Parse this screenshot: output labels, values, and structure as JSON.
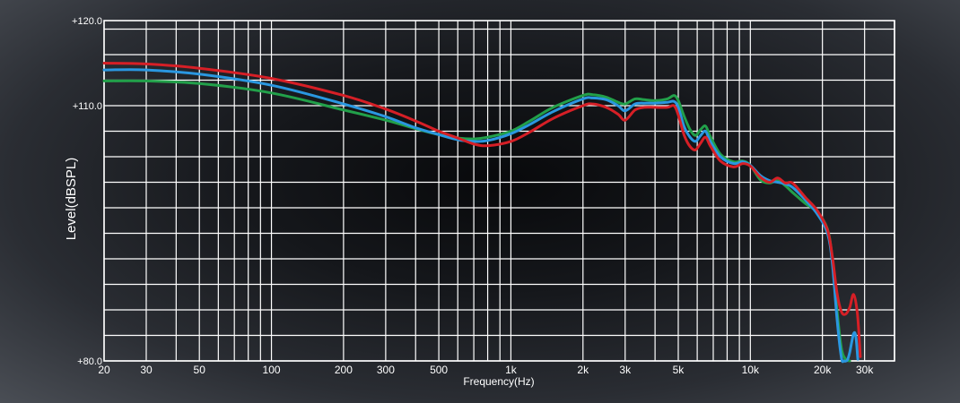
{
  "chart_data": {
    "type": "line",
    "xlabel": "Frequency(Hz)",
    "ylabel": "Level(dBSPL)",
    "x_scale": "log",
    "xlim": [
      20,
      40000
    ],
    "ylim": [
      80,
      120
    ],
    "grid": true,
    "x_tick_labels": [
      {
        "v": 20,
        "label": "20"
      },
      {
        "v": 30,
        "label": "30"
      },
      {
        "v": 50,
        "label": "50"
      },
      {
        "v": 100,
        "label": "100"
      },
      {
        "v": 200,
        "label": "200"
      },
      {
        "v": 300,
        "label": "300"
      },
      {
        "v": 500,
        "label": "500"
      },
      {
        "v": 1000,
        "label": "1k"
      },
      {
        "v": 2000,
        "label": "2k"
      },
      {
        "v": 3000,
        "label": "3k"
      },
      {
        "v": 5000,
        "label": "5k"
      },
      {
        "v": 10000,
        "label": "10k"
      },
      {
        "v": 20000,
        "label": "20k"
      },
      {
        "v": 30000,
        "label": "30k"
      }
    ],
    "y_tick_labels": [
      {
        "v": 120,
        "label": "+120.0"
      },
      {
        "v": 110,
        "label": "+110.0"
      },
      {
        "v": 80,
        "label": "+80.0"
      }
    ],
    "series": [
      {
        "color": "#22a04a",
        "points": [
          [
            20,
            112.9
          ],
          [
            30,
            112.9
          ],
          [
            50,
            112.6
          ],
          [
            100,
            111.5
          ],
          [
            200,
            109.5
          ],
          [
            300,
            108.3
          ],
          [
            400,
            107.3
          ],
          [
            500,
            106.6
          ],
          [
            600,
            106.2
          ],
          [
            700,
            106.1
          ],
          [
            800,
            106.3
          ],
          [
            1000,
            107.0
          ],
          [
            1200,
            108.2
          ],
          [
            1500,
            109.8
          ],
          [
            2000,
            111.2
          ],
          [
            2200,
            111.3
          ],
          [
            2500,
            111.0
          ],
          [
            2800,
            110.4
          ],
          [
            3000,
            110.2
          ],
          [
            3300,
            110.8
          ],
          [
            3600,
            110.7
          ],
          [
            4000,
            110.6
          ],
          [
            4500,
            110.8
          ],
          [
            4800,
            111.2
          ],
          [
            5000,
            110.6
          ],
          [
            5300,
            108.7
          ],
          [
            5600,
            107.2
          ],
          [
            5900,
            106.5
          ],
          [
            6200,
            107.2
          ],
          [
            6500,
            107.6
          ],
          [
            6800,
            106.4
          ],
          [
            7500,
            104.3
          ],
          [
            8500,
            103.4
          ],
          [
            9300,
            103.5
          ],
          [
            10000,
            103.0
          ],
          [
            11000,
            101.3
          ],
          [
            12000,
            100.9
          ],
          [
            13000,
            101.2
          ],
          [
            14000,
            100.6
          ],
          [
            15000,
            99.8
          ],
          [
            17000,
            98.5
          ],
          [
            19000,
            97.5
          ],
          [
            21000,
            95.5
          ],
          [
            22000,
            92.0
          ],
          [
            23000,
            86.0
          ],
          [
            24000,
            81.5
          ],
          [
            25000,
            80.2
          ],
          [
            26000,
            80.0
          ]
        ]
      },
      {
        "color": "#2a97e0",
        "points": [
          [
            20,
            114.2
          ],
          [
            30,
            114.2
          ],
          [
            50,
            113.7
          ],
          [
            100,
            112.4
          ],
          [
            200,
            110.2
          ],
          [
            300,
            108.7
          ],
          [
            400,
            107.4
          ],
          [
            500,
            106.6
          ],
          [
            600,
            106.0
          ],
          [
            700,
            105.8
          ],
          [
            800,
            105.9
          ],
          [
            1000,
            106.7
          ],
          [
            1200,
            107.8
          ],
          [
            1500,
            109.3
          ],
          [
            2000,
            110.8
          ],
          [
            2200,
            110.9
          ],
          [
            2500,
            110.7
          ],
          [
            2800,
            110.0
          ],
          [
            3000,
            109.4
          ],
          [
            3300,
            110.2
          ],
          [
            3600,
            110.3
          ],
          [
            4000,
            110.3
          ],
          [
            4500,
            110.4
          ],
          [
            4800,
            110.5
          ],
          [
            5000,
            109.8
          ],
          [
            5300,
            107.5
          ],
          [
            5600,
            106.3
          ],
          [
            5900,
            105.8
          ],
          [
            6200,
            106.5
          ],
          [
            6500,
            107.0
          ],
          [
            6800,
            105.8
          ],
          [
            7500,
            104.0
          ],
          [
            8500,
            103.2
          ],
          [
            9300,
            103.4
          ],
          [
            10000,
            103.0
          ],
          [
            11000,
            101.8
          ],
          [
            12000,
            101.2
          ],
          [
            13000,
            101.0
          ],
          [
            14000,
            100.8
          ],
          [
            15000,
            100.4
          ],
          [
            17000,
            98.9
          ],
          [
            19000,
            97.3
          ],
          [
            21000,
            95.0
          ],
          [
            22000,
            91.5
          ],
          [
            23000,
            85.0
          ],
          [
            24000,
            80.4
          ],
          [
            24600,
            80.0
          ],
          [
            25400,
            80.1
          ],
          [
            26000,
            81.0
          ],
          [
            27000,
            83.2
          ],
          [
            27600,
            82.8
          ],
          [
            28100,
            80.2
          ]
        ]
      },
      {
        "color": "#d61f26",
        "points": [
          [
            20,
            115.0
          ],
          [
            30,
            114.9
          ],
          [
            50,
            114.4
          ],
          [
            100,
            113.2
          ],
          [
            200,
            111.2
          ],
          [
            300,
            109.6
          ],
          [
            400,
            108.2
          ],
          [
            500,
            107.0
          ],
          [
            600,
            106.2
          ],
          [
            700,
            105.5
          ],
          [
            800,
            105.3
          ],
          [
            1000,
            105.8
          ],
          [
            1200,
            106.9
          ],
          [
            1500,
            108.5
          ],
          [
            2000,
            110.0
          ],
          [
            2200,
            110.2
          ],
          [
            2500,
            109.8
          ],
          [
            2800,
            109.0
          ],
          [
            3000,
            108.3
          ],
          [
            3300,
            109.5
          ],
          [
            3600,
            109.8
          ],
          [
            4000,
            109.8
          ],
          [
            4500,
            109.8
          ],
          [
            4800,
            110.0
          ],
          [
            5000,
            108.9
          ],
          [
            5300,
            106.5
          ],
          [
            5600,
            105.2
          ],
          [
            5900,
            104.8
          ],
          [
            6200,
            105.6
          ],
          [
            6500,
            106.3
          ],
          [
            6800,
            105.3
          ],
          [
            7500,
            103.5
          ],
          [
            8500,
            102.8
          ],
          [
            9300,
            103.2
          ],
          [
            10000,
            102.9
          ],
          [
            11000,
            101.6
          ],
          [
            12000,
            101.0
          ],
          [
            13000,
            101.5
          ],
          [
            14000,
            100.9
          ],
          [
            15000,
            100.9
          ],
          [
            17000,
            99.2
          ],
          [
            19000,
            97.7
          ],
          [
            21000,
            95.4
          ],
          [
            22000,
            92.3
          ],
          [
            23000,
            88.0
          ],
          [
            24000,
            85.8
          ],
          [
            25000,
            85.5
          ],
          [
            26000,
            86.3
          ],
          [
            27000,
            87.8
          ],
          [
            28000,
            85.5
          ],
          [
            28800,
            80.5
          ]
        ]
      }
    ]
  }
}
